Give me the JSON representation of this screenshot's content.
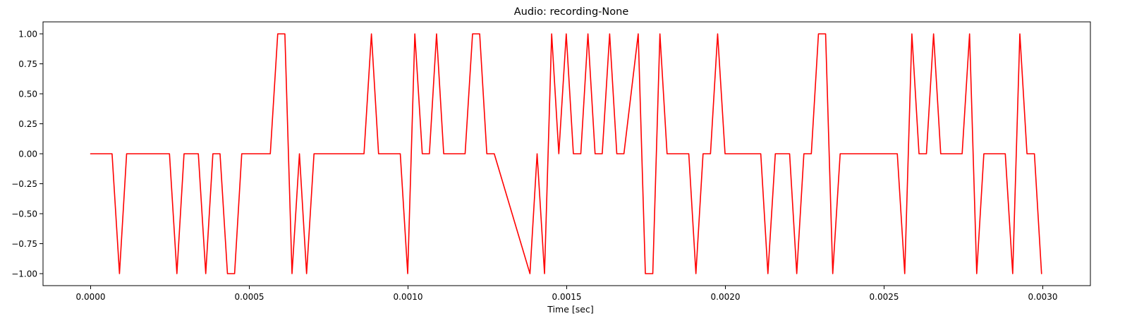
{
  "chart_data": {
    "type": "line",
    "title": "Audio: recording-None",
    "xlabel": "Time [sec]",
    "ylabel": "",
    "xlim": [
      -0.00015,
      0.00315
    ],
    "ylim": [
      -1.1,
      1.1
    ],
    "grid": false,
    "x_ticks": [
      0,
      0.0005,
      0.001,
      0.0015,
      0.002,
      0.0025,
      0.003
    ],
    "x_tick_labels": [
      "0.0000",
      "0.0005",
      "0.0010",
      "0.0015",
      "0.0020",
      "0.0025",
      "0.0030"
    ],
    "y_ticks": [
      -1,
      -0.75,
      -0.5,
      -0.25,
      0,
      0.25,
      0.5,
      0.75,
      1
    ],
    "y_tick_labels": [
      "−1.00",
      "−0.75",
      "−0.50",
      "−0.25",
      "0.00",
      "0.25",
      "0.50",
      "0.75",
      "1.00"
    ],
    "series": [
      {
        "color": "#ff0000",
        "x": [
          0,
          6.75e-05,
          9.09e-05,
          0.0001134,
          0.0002484,
          0.0002718,
          0.0002943,
          0.0003393,
          0.0003627,
          0.0003852,
          0.0004077,
          0.0004311,
          0.0004536,
          0.0004761,
          0.0005661,
          0.0005895,
          0.000612,
          0.0006345,
          0.0006579,
          0.0006804,
          0.0007038,
          0.0008613,
          0.0008847,
          0.0009072,
          0.0009756,
          0.000999,
          0.0010215,
          0.0010449,
          0.0010674,
          0.0010899,
          0.0011124,
          0.0011799,
          0.0012033,
          0.0012258,
          0.0012483,
          0.0012717,
          0.0013842,
          0.0014067,
          0.0014301,
          0.0014526,
          0.0014751,
          0.0014985,
          0.001521,
          0.0015444,
          0.0015669,
          0.0015894,
          0.0016119,
          0.0016353,
          0.0016578,
          0.0016803,
          0.0017253,
          0.0017478,
          0.0017712,
          0.0017937,
          0.0018162,
          0.0018846,
          0.0019071,
          0.0019296,
          0.001953,
          0.0019755,
          0.0019989,
          0.0020214,
          0.0021114,
          0.0021339,
          0.0021573,
          0.0022023,
          0.0022248,
          0.0022473,
          0.0022707,
          0.0022932,
          0.0023157,
          0.0023382,
          0.0023616,
          0.0025416,
          0.002565,
          0.0025875,
          0.00261,
          0.0026334,
          0.0026559,
          0.0026784,
          0.0027459,
          0.0027693,
          0.0027918,
          0.0028143,
          0.0028818,
          0.0029052,
          0.0029277,
          0.0029502,
          0.0029736,
          0.0029961
        ],
        "y": [
          0,
          0,
          -1,
          0,
          0,
          -1,
          0,
          0,
          -1,
          0,
          0,
          -1,
          -1,
          0,
          0,
          1,
          1,
          -1,
          0,
          -1,
          0,
          0,
          1,
          0,
          0,
          -1,
          1,
          0,
          0,
          1,
          0,
          0,
          1,
          1,
          0,
          0,
          -1,
          0,
          -1,
          1,
          0,
          1,
          0,
          0,
          1,
          0,
          0,
          1,
          0,
          0,
          1,
          -1,
          -1,
          1,
          0,
          0,
          -1,
          0,
          0,
          1,
          0,
          0,
          0,
          -1,
          0,
          0,
          -1,
          0,
          0,
          1,
          1,
          -1,
          0,
          0,
          -1,
          1,
          0,
          0,
          1,
          0,
          0,
          1,
          -1,
          0,
          0,
          -1,
          1,
          0,
          0,
          -1
        ]
      }
    ]
  }
}
